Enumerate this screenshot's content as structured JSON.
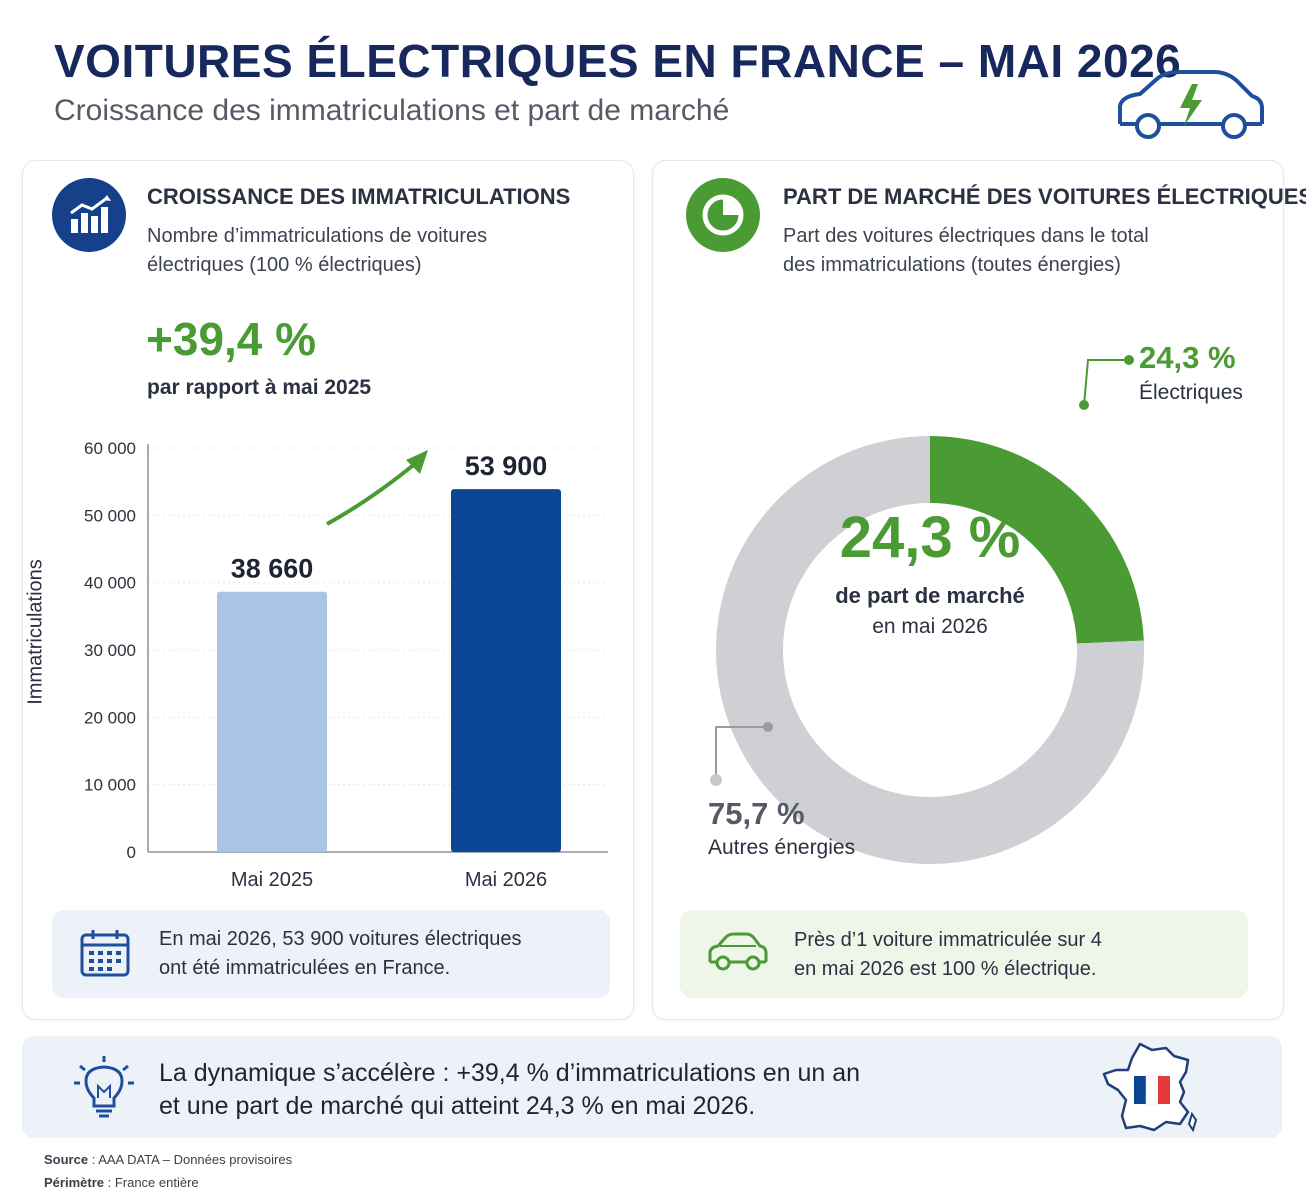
{
  "header": {
    "title": "VOITURES ÉLECTRIQUES EN FRANCE – MAI 2026",
    "subtitle": "Croissance des immatriculations et part de marché"
  },
  "left": {
    "title": "CROISSANCE DES IMMATRICULATIONS",
    "desc_line1": "Nombre d’immatriculations de voitures",
    "desc_line2": "électriques (100 % électriques)",
    "growth": "+39,4 %",
    "growth_caption": "par rapport à mai 2025",
    "info_line1": "En mai 2026, 53 900 voitures électriques",
    "info_line2": "ont été immatriculées en France."
  },
  "right": {
    "title": "PART DE MARCHÉ DES VOITURES ÉLECTRIQUES",
    "desc_line1": "Part des voitures électriques dans le total",
    "desc_line2": "des immatriculations (toutes énergies)",
    "center_value": "24,3 %",
    "center_caption1": "de part de marché",
    "center_caption2": "en mai 2026",
    "info_line1": "Près d’1 voiture immatriculée sur 4",
    "info_line2": "en mai 2026 est 100 % électrique."
  },
  "bottom": {
    "line1": "La dynamique s’accélère : +39,4 % d’immatriculations en un an",
    "line2": "et une part de marché qui atteint 24,3 % en mai 2026."
  },
  "footer": {
    "source_label": "Source",
    "source_text": " : AAA DATA – Données provisoires",
    "scope_label": "Périmètre",
    "scope_text": " : France entière"
  },
  "colors": {
    "navy": "#16285c",
    "green": "#4a9b34",
    "bar_light": "#a9c4e6",
    "bar_dark": "#0b4596",
    "grey": "#cfd0d4"
  },
  "chart_data": [
    {
      "type": "bar",
      "categories": [
        "Mai 2025",
        "Mai 2026"
      ],
      "values": [
        38660,
        53900
      ],
      "value_labels": [
        "38 660",
        "53 900"
      ],
      "ylabel": "Immatriculations",
      "ylim": [
        0,
        60000
      ],
      "yticks": [
        0,
        10000,
        20000,
        30000,
        40000,
        50000,
        60000
      ],
      "ytick_labels": [
        "0",
        "10 000",
        "20 000",
        "30 000",
        "40 000",
        "50 000",
        "60 000"
      ],
      "grid": true
    },
    {
      "type": "pie",
      "donut": true,
      "slices": [
        {
          "name": "Électriques",
          "value": 24.3,
          "label": "24,3 %",
          "color": "#4a9b34"
        },
        {
          "name": "Autres énergies",
          "value": 75.7,
          "label": "75,7 %",
          "color": "#cfd0d4"
        }
      ]
    }
  ]
}
